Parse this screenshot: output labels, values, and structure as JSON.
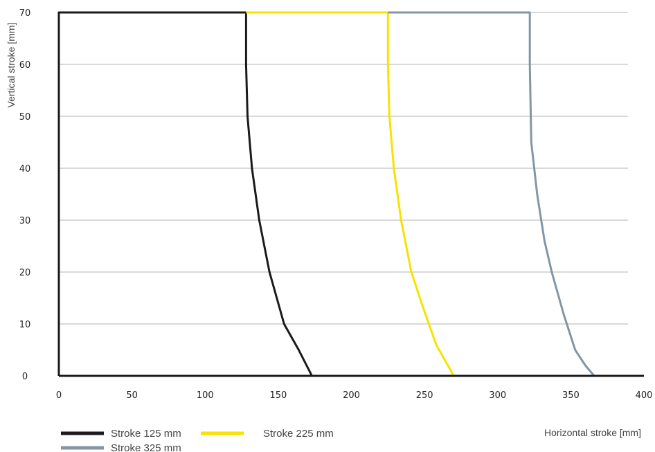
{
  "chart_data": {
    "type": "line",
    "xlabel": "Horizontal stroke [mm]",
    "ylabel": "Vertical stroke [mm]",
    "xlim": [
      0,
      400
    ],
    "ylim": [
      0,
      70
    ],
    "xticks": [
      0,
      50,
      100,
      150,
      200,
      250,
      300,
      350,
      400
    ],
    "yticks": [
      0,
      10,
      20,
      30,
      40,
      50,
      60,
      70
    ],
    "grid": "horizontal",
    "legend_position": "bottom-left",
    "series": [
      {
        "name": "Stroke 125 mm",
        "color": "#1a1a1a",
        "points": [
          [
            0,
            0
          ],
          [
            0,
            70
          ],
          [
            128,
            70
          ],
          [
            128,
            60
          ],
          [
            129,
            50
          ],
          [
            132,
            40
          ],
          [
            137,
            30
          ],
          [
            144,
            20
          ],
          [
            154,
            10
          ],
          [
            164,
            5
          ],
          [
            173,
            0
          ]
        ]
      },
      {
        "name": "Stroke 225 mm",
        "color": "#f7e200",
        "points": [
          [
            128,
            70
          ],
          [
            225,
            70
          ],
          [
            225,
            60
          ],
          [
            226,
            50
          ],
          [
            229,
            40
          ],
          [
            234,
            30
          ],
          [
            241,
            20
          ],
          [
            248,
            14
          ],
          [
            258,
            6
          ],
          [
            264,
            3
          ],
          [
            270,
            0
          ]
        ]
      },
      {
        "name": "Stroke 325 mm",
        "color": "#8296a6",
        "points": [
          [
            225,
            70
          ],
          [
            322,
            70
          ],
          [
            322,
            60
          ],
          [
            323,
            45
          ],
          [
            327,
            35
          ],
          [
            332,
            26
          ],
          [
            337,
            20
          ],
          [
            345,
            12
          ],
          [
            353,
            5
          ],
          [
            360,
            2
          ],
          [
            366,
            0
          ]
        ]
      }
    ],
    "baseline": {
      "color": "#1a1a1a",
      "points": [
        [
          0,
          0
        ],
        [
          400,
          0
        ]
      ]
    }
  }
}
